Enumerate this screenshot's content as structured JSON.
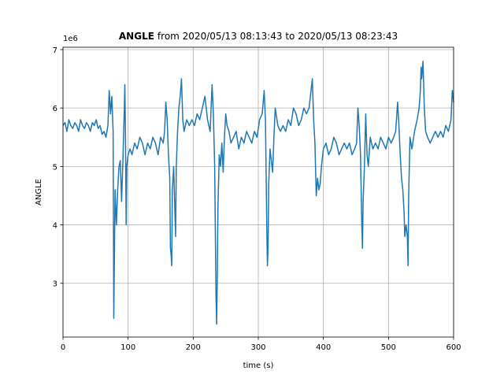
{
  "chart_data": {
    "type": "line",
    "title_bold": "ANGLE",
    "title": "from 2020/05/13 08:13:43 to 2020/05/13 08:23:43",
    "y_offset_label": "1e6",
    "xlabel": "time (s)",
    "ylabel": "ANGLE",
    "xlim": [
      0,
      600
    ],
    "ylim": [
      2.08,
      7.04
    ],
    "xticks": [
      0,
      100,
      200,
      300,
      400,
      500,
      600
    ],
    "yticks": [
      3,
      4,
      5,
      6,
      7
    ],
    "grid": true,
    "series": [
      {
        "color": "#1f77b4",
        "x": [
          0,
          3,
          6,
          9,
          12,
          15,
          18,
          21,
          24,
          27,
          30,
          33,
          36,
          39,
          42,
          45,
          48,
          51,
          54,
          57,
          60,
          63,
          66,
          69,
          71,
          73,
          75,
          77,
          78,
          79,
          80,
          82,
          84,
          86,
          88,
          90,
          92,
          94,
          95,
          96,
          97,
          98,
          100,
          103,
          106,
          110,
          114,
          118,
          122,
          126,
          130,
          134,
          138,
          142,
          146,
          150,
          154,
          156,
          158,
          160,
          162,
          164,
          165,
          166,
          167,
          168,
          170,
          172,
          173,
          174,
          176,
          178,
          180,
          182,
          184,
          186,
          190,
          194,
          198,
          202,
          206,
          210,
          214,
          218,
          222,
          226,
          229,
          231,
          233,
          235,
          236,
          237,
          238,
          240,
          242,
          244,
          246,
          248,
          250,
          252,
          255,
          258,
          262,
          266,
          270,
          274,
          278,
          282,
          286,
          290,
          294,
          298,
          302,
          306,
          309,
          311,
          313,
          314,
          315,
          316,
          318,
          320,
          322,
          324,
          326,
          330,
          334,
          338,
          342,
          346,
          350,
          354,
          358,
          362,
          366,
          370,
          374,
          378,
          381,
          383,
          385,
          387,
          389,
          391,
          393,
          395,
          397,
          400,
          404,
          408,
          412,
          416,
          420,
          424,
          428,
          432,
          436,
          440,
          444,
          448,
          451,
          453,
          455,
          457,
          459,
          460,
          461,
          463,
          465,
          467,
          469,
          472,
          476,
          480,
          484,
          488,
          492,
          496,
          500,
          504,
          508,
          511,
          514,
          516,
          518,
          520,
          522,
          524,
          525,
          527,
          529,
          530,
          531,
          533,
          536,
          540,
          544,
          547,
          549,
          550,
          551,
          553,
          555,
          557,
          560,
          564,
          568,
          572,
          576,
          580,
          584,
          588,
          592,
          596,
          598,
          600
        ],
        "values": [
          5.7,
          5.75,
          5.6,
          5.8,
          5.7,
          5.65,
          5.75,
          5.7,
          5.6,
          5.8,
          5.7,
          5.65,
          5.75,
          5.7,
          5.6,
          5.75,
          5.7,
          5.8,
          5.65,
          5.7,
          5.55,
          5.6,
          5.5,
          5.7,
          6.3,
          5.9,
          6.2,
          5.6,
          2.4,
          3.5,
          4.6,
          4.0,
          4.6,
          5.0,
          5.1,
          4.4,
          5.1,
          5.9,
          6.4,
          5.5,
          4.0,
          5.0,
          5.2,
          5.3,
          5.2,
          5.4,
          5.3,
          5.5,
          5.4,
          5.2,
          5.4,
          5.3,
          5.5,
          5.4,
          5.2,
          5.5,
          5.4,
          5.6,
          6.1,
          5.8,
          5.2,
          4.8,
          3.6,
          3.5,
          3.3,
          4.6,
          5.0,
          4.2,
          3.8,
          5.0,
          5.6,
          6.0,
          6.2,
          6.5,
          5.8,
          5.6,
          5.8,
          5.7,
          5.8,
          5.7,
          5.9,
          5.8,
          6.0,
          6.2,
          5.8,
          5.6,
          6.4,
          5.9,
          5.0,
          2.8,
          2.3,
          3.1,
          4.3,
          5.2,
          5.0,
          5.4,
          4.9,
          5.5,
          5.9,
          5.7,
          5.6,
          5.4,
          5.5,
          5.6,
          5.3,
          5.5,
          5.4,
          5.6,
          5.5,
          5.4,
          5.6,
          5.5,
          5.8,
          5.9,
          6.3,
          5.8,
          4.0,
          3.3,
          3.6,
          4.7,
          5.3,
          5.1,
          4.9,
          5.5,
          6.0,
          5.7,
          5.6,
          5.7,
          5.6,
          5.8,
          5.7,
          6.0,
          5.9,
          5.7,
          5.8,
          6.0,
          5.9,
          6.0,
          6.3,
          6.5,
          5.8,
          5.4,
          4.5,
          4.8,
          4.6,
          4.7,
          5.0,
          5.3,
          5.4,
          5.2,
          5.3,
          5.5,
          5.4,
          5.2,
          5.3,
          5.4,
          5.3,
          5.4,
          5.2,
          5.3,
          5.4,
          6.0,
          5.7,
          5.2,
          4.0,
          3.6,
          4.4,
          5.0,
          5.9,
          5.2,
          5.0,
          5.5,
          5.3,
          5.4,
          5.3,
          5.5,
          5.4,
          5.3,
          5.5,
          5.4,
          5.5,
          5.6,
          6.1,
          5.7,
          5.2,
          4.8,
          4.6,
          4.2,
          3.8,
          4.0,
          3.8,
          3.3,
          4.5,
          5.5,
          5.3,
          5.6,
          5.8,
          6.0,
          6.3,
          6.7,
          6.5,
          6.8,
          6.0,
          5.6,
          5.5,
          5.4,
          5.5,
          5.6,
          5.5,
          5.6,
          5.5,
          5.7,
          5.6,
          5.8,
          6.3,
          6.1
        ]
      }
    ]
  }
}
